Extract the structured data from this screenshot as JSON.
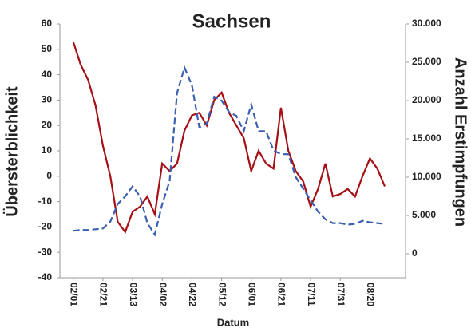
{
  "chart_data": {
    "type": "line",
    "title": "Sachsen",
    "x_label": "Datum",
    "y_label": "Übersterblichkeit",
    "y2_label": "Anzahl Erstimpfungen",
    "x": [
      "02/01",
      "02/06",
      "02/11",
      "02/16",
      "02/21",
      "02/26",
      "03/03",
      "03/08",
      "03/13",
      "03/18",
      "03/23",
      "03/28",
      "04/02",
      "04/07",
      "04/12",
      "04/17",
      "04/22",
      "04/27",
      "05/02",
      "05/07",
      "05/12",
      "05/17",
      "05/22",
      "05/27",
      "06/01",
      "06/06",
      "06/11",
      "06/16",
      "06/21",
      "06/26",
      "07/01",
      "07/06",
      "07/11",
      "07/16",
      "07/21",
      "07/26",
      "07/31",
      "08/05",
      "08/10",
      "08/15",
      "08/20",
      "08/25",
      "08/30"
    ],
    "series": [
      {
        "color": "#a50f15",
        "dash": false,
        "values": [
          53,
          44,
          38,
          28,
          12,
          0,
          -18,
          -22,
          -14,
          -12,
          -8,
          -15,
          5,
          2,
          5,
          18,
          24,
          25,
          20,
          30,
          33,
          25,
          20,
          15,
          2,
          10,
          5,
          3,
          27,
          10,
          2,
          -2,
          -12,
          -5,
          5,
          -8,
          -7,
          -5,
          -8,
          0,
          7,
          3,
          -4
        ]
      },
      {
        "color": "#3a5fae",
        "dash": true,
        "axis": "y2",
        "values": [
          3000,
          3100,
          3100,
          3200,
          3300,
          4200,
          6500,
          7500,
          8800,
          7500,
          4000,
          2500,
          6500,
          9500,
          21000,
          24300,
          22000,
          16500,
          17000,
          20500,
          20000,
          18500,
          18000,
          16000,
          19500,
          16000,
          16000,
          13500,
          13000,
          13000,
          10000,
          8500,
          7000,
          5500,
          4500,
          4000,
          4000,
          3800,
          3900,
          4300,
          4100,
          4000,
          3900
        ]
      }
    ],
    "xlim": [
      "01/23",
      "09/13"
    ],
    "xticks": [
      "02/01",
      "02/21",
      "03/13",
      "04/02",
      "04/22",
      "05/12",
      "06/01",
      "06/21",
      "07/11",
      "07/31",
      "08/20"
    ],
    "ylim": [
      -40,
      60
    ],
    "yticks": [
      -40,
      -30,
      -20,
      -10,
      0,
      10,
      20,
      30,
      40,
      50,
      60
    ],
    "y2lim": [
      -3125,
      30000
    ],
    "y2ticks": [
      0,
      {
        "value": 5000,
        "label": "5.000"
      },
      {
        "value": 10000,
        "label": "10.000"
      },
      {
        "value": 15000,
        "label": "15.000"
      },
      {
        "value": 20000,
        "label": "20.000"
      },
      {
        "value": 25000,
        "label": "25.000"
      },
      {
        "value": 30000,
        "label": "30.000"
      }
    ],
    "grid": false
  }
}
